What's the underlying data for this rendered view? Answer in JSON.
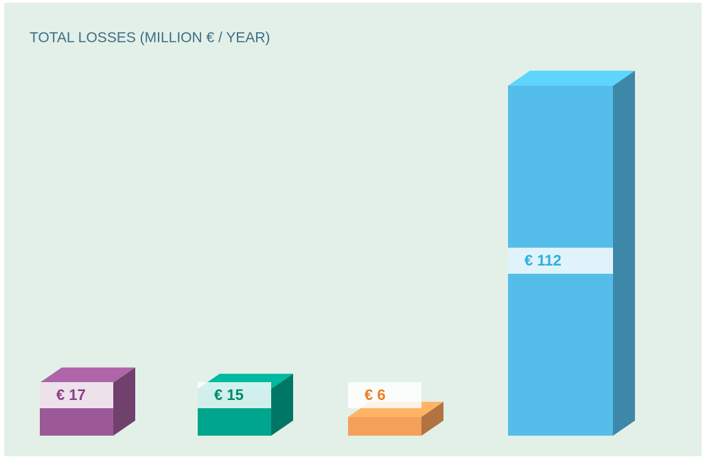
{
  "chart_data": {
    "type": "bar",
    "title": "TOTAL LOSSES (MILLION € / YEAR)",
    "values": [
      17,
      15,
      6,
      112
    ],
    "value_labels": [
      "€ 17",
      "€ 15",
      "€ 6",
      "€ 112"
    ],
    "colors": [
      "#9b5a97",
      "#00a58e",
      "#f4a05a",
      "#55bde9"
    ]
  }
}
